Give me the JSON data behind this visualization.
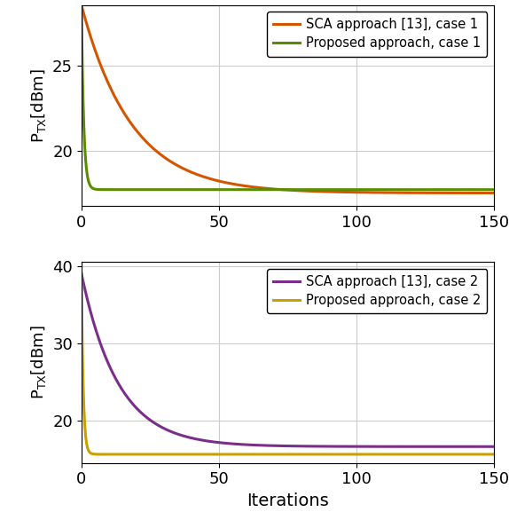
{
  "subplot1": {
    "sca_color": "#D45500",
    "proposed_color": "#5B8C00",
    "sca_label": "SCA approach [13], case 1",
    "proposed_label": "Proposed approach, case 1",
    "sca_start": 28.5,
    "sca_final": 17.55,
    "proposed_start": 28.5,
    "proposed_final": 17.75,
    "sca_decay": 0.055,
    "proposed_decay": 1.2,
    "ylim": [
      16.8,
      28.5
    ],
    "yticks": [
      20,
      25
    ],
    "ylabel": "P$_{\\mathrm{TX}}$[dBm]"
  },
  "subplot2": {
    "sca_color": "#7B2D8B",
    "proposed_color": "#C8A000",
    "sca_label": "SCA approach [13], case 2",
    "proposed_label": "Proposed approach, case 2",
    "sca_start": 39.0,
    "sca_final": 16.6,
    "proposed_start": 39.0,
    "proposed_final": 15.6,
    "sca_decay": 0.075,
    "proposed_decay": 1.5,
    "ylim": [
      14.5,
      40.5
    ],
    "yticks": [
      20,
      30,
      40
    ],
    "ylabel": "P$_{\\mathrm{TX}}$[dBm]"
  },
  "xlim": [
    0,
    150
  ],
  "xticks": [
    0,
    50,
    100,
    150
  ],
  "xlabel": "Iterations",
  "n_points": 1000,
  "linewidth": 2.2,
  "grid_color": "#cccccc",
  "legend_fontsize": 10.5,
  "tick_labelsize": 13,
  "xlabel_fontsize": 14,
  "ylabel_fontsize": 13
}
